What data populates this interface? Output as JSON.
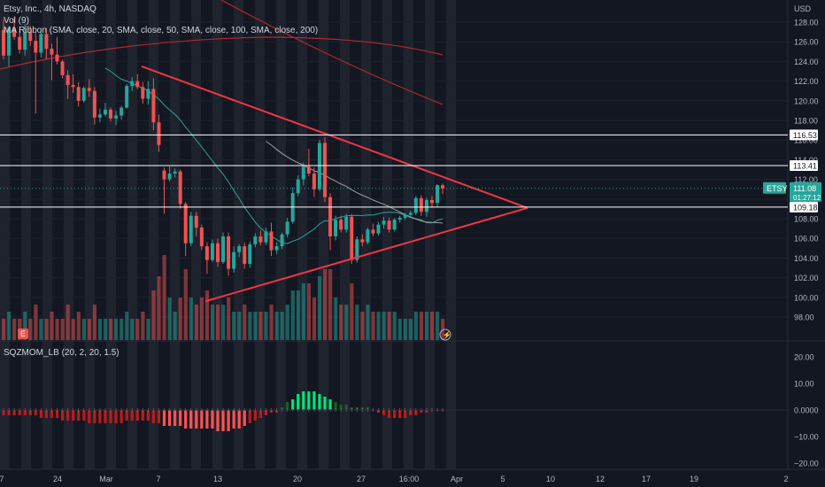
{
  "header": {
    "symbol_line": "Etsy, Inc., 4h, NASDAQ",
    "vol_line": "Vol (9)",
    "ma_line": "MA Ribbon (SMA, close, 20, SMA, close, 50, SMA, close, 100, SMA, close, 200)"
  },
  "indicator": {
    "label": "SQZMOM_LB (20, 2, 20, 1.5)"
  },
  "price_axis": {
    "currency": "USD",
    "ticks": [
      "128.00",
      "126.00",
      "124.00",
      "122.00",
      "120.00",
      "118.00",
      "116.00",
      "114.00",
      "112.00",
      "110.00",
      "108.00",
      "106.00",
      "104.00",
      "102.00",
      "100.00",
      "98.00"
    ]
  },
  "osc_axis": {
    "ticks": [
      "20.00",
      "10.00",
      "0.0000",
      "−10.00",
      "−20.00"
    ]
  },
  "time_axis": {
    "ticks": [
      "7",
      "24",
      "Mar",
      "7",
      "13",
      "20",
      "27",
      "16:00",
      "Apr",
      "5",
      "10",
      "12",
      "17",
      "19",
      "2"
    ]
  },
  "markers": {
    "level_high": "116.53",
    "level_mid": "113.41",
    "level_low": "109.18",
    "price_symbol": "ETSY",
    "price_value": "111.08",
    "countdown": "01:27:12"
  },
  "colors": {
    "background": "#131722",
    "up": "#26a69a",
    "down": "#ef5350",
    "trendline": "#f23645",
    "ma_fast": "#26a69a",
    "ma_slow": "#b22833",
    "level_line": "#ffffff"
  },
  "chart_data": {
    "type": "candlestick",
    "ylim": [
      97,
      130
    ],
    "series": [
      {
        "ohlc": [
          [
            127.2,
            128.3,
            124.2,
            124.6
          ],
          [
            124.6,
            127.6,
            123.5,
            127.4
          ],
          [
            127.4,
            128.5,
            126.2,
            126.5
          ],
          [
            126.5,
            127.3,
            124.8,
            125.2
          ],
          [
            125.2,
            127.8,
            124.6,
            127.0
          ],
          [
            127.0,
            127.6,
            125.6,
            126.1
          ],
          [
            126.1,
            126.9,
            118.7,
            124.9
          ],
          [
            124.9,
            127.4,
            124.4,
            126.8
          ],
          [
            126.8,
            127.4,
            124.2,
            125.3
          ],
          [
            125.3,
            125.8,
            122.1,
            124.7
          ],
          [
            124.7,
            126.5,
            123.7,
            124.0
          ],
          [
            124.0,
            124.2,
            122.3,
            122.6
          ],
          [
            122.6,
            123.1,
            120.2,
            121.6
          ],
          [
            121.6,
            122.7,
            120.8,
            121.4
          ],
          [
            121.4,
            121.9,
            119.4,
            120.0
          ],
          [
            120.0,
            121.5,
            119.8,
            121.3
          ],
          [
            121.3,
            122.2,
            120.4,
            121.0
          ],
          [
            121.0,
            121.4,
            117.6,
            118.3
          ],
          [
            118.3,
            119.2,
            117.8,
            118.6
          ],
          [
            118.6,
            119.8,
            118.4,
            119.1
          ],
          [
            119.1,
            119.3,
            117.9,
            118.2
          ],
          [
            118.2,
            119.0,
            117.5,
            118.5
          ],
          [
            118.5,
            119.5,
            118.1,
            119.3
          ],
          [
            119.3,
            121.7,
            119.2,
            121.5
          ],
          [
            121.5,
            122.4,
            121.0,
            122.0
          ],
          [
            122.0,
            122.7,
            121.2,
            121.4
          ],
          [
            121.4,
            121.9,
            119.7,
            120.2
          ],
          [
            120.2,
            122.0,
            119.6,
            121.2
          ],
          [
            121.2,
            122.3,
            117.0,
            117.8
          ],
          [
            117.8,
            118.6,
            114.8,
            115.5
          ],
          [
            112.9,
            113.2,
            108.5,
            112.0
          ],
          [
            112.0,
            113.3,
            111.8,
            112.6
          ],
          [
            112.6,
            113.1,
            112.2,
            112.8
          ],
          [
            112.8,
            113.0,
            109.0,
            109.5
          ],
          [
            109.5,
            109.7,
            104.2,
            105.5
          ],
          [
            105.5,
            108.7,
            105.2,
            108.3
          ],
          [
            108.3,
            108.7,
            106.2,
            107.1
          ],
          [
            107.1,
            107.4,
            104.8,
            105.2
          ],
          [
            105.2,
            105.6,
            102.4,
            103.8
          ],
          [
            103.8,
            105.9,
            103.6,
            105.5
          ],
          [
            105.5,
            106.0,
            103.1,
            103.6
          ],
          [
            103.6,
            106.6,
            103.4,
            106.2
          ],
          [
            106.2,
            106.6,
            102.2,
            102.9
          ],
          [
            102.9,
            105.2,
            102.5,
            104.6
          ],
          [
            104.6,
            105.4,
            104.1,
            105.2
          ],
          [
            105.2,
            105.6,
            102.9,
            103.4
          ],
          [
            103.4,
            105.7,
            103.0,
            105.4
          ],
          [
            105.4,
            106.5,
            105.1,
            106.2
          ],
          [
            106.2,
            106.8,
            105.3,
            105.6
          ],
          [
            105.6,
            107.1,
            105.3,
            106.7
          ],
          [
            106.7,
            107.6,
            104.2,
            104.8
          ],
          [
            104.8,
            105.6,
            104.4,
            105.2
          ],
          [
            105.2,
            106.6,
            104.9,
            106.4
          ],
          [
            106.4,
            108.1,
            106.1,
            107.7
          ],
          [
            107.7,
            111.2,
            107.5,
            110.6
          ],
          [
            110.6,
            112.4,
            110.3,
            112.0
          ],
          [
            112.0,
            113.7,
            111.4,
            113.3
          ],
          [
            113.3,
            115.1,
            112.3,
            112.6
          ],
          [
            112.6,
            113.2,
            110.2,
            111.0
          ],
          [
            111.0,
            116.0,
            110.8,
            115.7
          ],
          [
            115.7,
            116.3,
            109.7,
            110.2
          ],
          [
            110.2,
            110.6,
            104.8,
            106.2
          ],
          [
            106.2,
            108.3,
            105.8,
            107.9
          ],
          [
            107.9,
            108.3,
            106.6,
            106.9
          ],
          [
            106.9,
            108.5,
            106.6,
            108.2
          ],
          [
            108.2,
            108.5,
            103.4,
            103.8
          ],
          [
            103.8,
            106.2,
            103.5,
            105.9
          ],
          [
            105.9,
            106.4,
            105.2,
            105.6
          ],
          [
            105.6,
            107.1,
            105.4,
            106.9
          ],
          [
            106.9,
            107.5,
            106.2,
            106.5
          ],
          [
            106.5,
            107.7,
            106.3,
            107.4
          ],
          [
            107.4,
            108.2,
            107.0,
            107.8
          ],
          [
            107.8,
            108.1,
            106.6,
            106.9
          ],
          [
            106.9,
            108.1,
            106.7,
            107.9
          ],
          [
            107.9,
            108.3,
            107.6,
            108.1
          ],
          [
            108.1,
            108.6,
            107.9,
            108.4
          ],
          [
            108.4,
            108.8,
            108.2,
            108.6
          ],
          [
            108.6,
            110.3,
            108.4,
            110.1
          ],
          [
            110.1,
            110.4,
            108.3,
            108.7
          ],
          [
            108.7,
            110.1,
            108.2,
            109.9
          ],
          [
            109.9,
            110.3,
            109.1,
            109.6
          ],
          [
            109.6,
            111.5,
            109.2,
            111.4
          ],
          [
            111.4,
            111.6,
            110.5,
            111.08
          ]
        ],
        "volume": [
          3,
          4,
          3,
          3,
          4,
          3,
          5,
          3,
          3,
          4,
          3,
          3,
          5,
          3,
          4,
          3,
          3,
          5,
          3,
          3,
          3,
          3,
          3,
          4,
          3,
          3,
          4,
          3,
          7,
          9,
          12,
          6,
          4,
          6,
          10,
          6,
          5,
          6,
          7,
          5,
          5,
          5,
          6,
          4,
          4,
          5,
          4,
          4,
          4,
          4,
          5,
          4,
          4,
          5,
          7,
          7,
          8,
          8,
          6,
          9,
          10,
          10,
          6,
          5,
          5,
          8,
          5,
          4,
          5,
          4,
          4,
          4,
          4,
          4,
          3,
          3,
          3,
          4,
          4,
          4,
          4,
          4,
          3
        ]
      }
    ],
    "squeeze_momentum": [
      -2,
      -2,
      -2,
      -2,
      -2,
      -2,
      -2,
      -3,
      -3,
      -3,
      -3,
      -4,
      -4,
      -4,
      -4,
      -4,
      -5,
      -5,
      -5,
      -5,
      -5,
      -5,
      -5,
      -4,
      -4,
      -4,
      -4,
      -4,
      -5,
      -5,
      -6,
      -6,
      -6,
      -6,
      -7,
      -7,
      -7,
      -7,
      -7,
      -7,
      -8,
      -8,
      -8,
      -7,
      -7,
      -6,
      -5,
      -4,
      -3,
      -2,
      -1,
      -1,
      1,
      3,
      4,
      6,
      7,
      7,
      7,
      6,
      5,
      4,
      3,
      2,
      2,
      1,
      1,
      1,
      1,
      0,
      -1,
      -2,
      -3,
      -3,
      -3,
      -3,
      -2,
      -2,
      -1,
      -1,
      0,
      0,
      0
    ]
  }
}
